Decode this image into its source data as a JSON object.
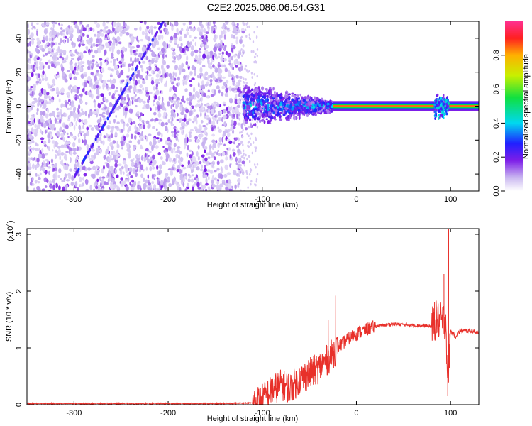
{
  "title": "C2E2.2025.086.06.54.G31",
  "chart_data": [
    {
      "type": "heatmap",
      "xlabel": "Height of straight line (km)",
      "ylabel": "Frequency (Hz)",
      "xlim": [
        -350,
        130
      ],
      "ylim": [
        -50,
        50
      ],
      "x_ticks": [
        -300,
        -200,
        -100,
        0,
        100
      ],
      "y_ticks": [
        -40,
        -20,
        0,
        20,
        40
      ],
      "colorbar": {
        "label": "Normalized spectral amplitude",
        "range": [
          0,
          1
        ],
        "ticks": [
          0.0,
          0.2,
          0.4,
          0.6,
          0.8
        ]
      },
      "features": [
        {
          "x_range": [
            -350,
            -120
          ],
          "description": "broadband noise, amplitude ~0.1"
        },
        {
          "x_range": [
            -120,
            -25
          ],
          "freq_center": 0,
          "freq_halfwidth": 12,
          "amplitude_max": 0.45
        },
        {
          "x_range": [
            -25,
            130
          ],
          "freq_center": 0,
          "freq_halfwidth": 2,
          "amplitude_max": 0.9
        },
        {
          "x_range": [
            85,
            100
          ],
          "freq_center": 0,
          "freq_halfwidth": 8,
          "amplitude_max": 0.4
        }
      ]
    },
    {
      "type": "line",
      "xlabel": "Height of straight line (km)",
      "ylabel": "SNR (10 * v/v)",
      "multiplier_label": "(x10",
      "multiplier_exp": "4",
      "multiplier_close": ")",
      "xlim": [
        -350,
        130
      ],
      "ylim": [
        0,
        3.1
      ],
      "x_ticks": [
        -300,
        -200,
        -100,
        0,
        100
      ],
      "y_ticks": [
        0,
        1,
        2,
        3
      ],
      "color": "#e8302a",
      "series": [
        {
          "x": [
            -350,
            -300,
            -250,
            -200,
            -150,
            -110,
            -100,
            -90,
            -80,
            -70,
            -60,
            -50,
            -40,
            -30,
            -20,
            -10,
            0,
            10,
            20,
            30,
            40,
            50,
            60,
            70,
            80,
            85,
            90,
            95,
            97,
            100,
            105,
            110,
            120,
            130
          ],
          "y": [
            0.02,
            0.02,
            0.02,
            0.02,
            0.02,
            0.03,
            0.1,
            0.25,
            0.35,
            0.3,
            0.45,
            0.55,
            0.65,
            0.8,
            1.0,
            1.15,
            1.25,
            1.32,
            1.38,
            1.4,
            1.42,
            1.41,
            1.4,
            1.39,
            1.38,
            1.5,
            1.45,
            1.5,
            0.4,
            1.3,
            1.2,
            1.3,
            1.3,
            1.28
          ]
        }
      ],
      "spikes": [
        {
          "x": -22,
          "y": 1.92
        },
        {
          "x": -30,
          "y": 1.5
        },
        {
          "x": 83,
          "y": 1.8
        },
        {
          "x": 93,
          "y": 2.3
        },
        {
          "x": 98,
          "y": 3.1
        },
        {
          "x": 97,
          "y": 0.15
        }
      ]
    }
  ]
}
